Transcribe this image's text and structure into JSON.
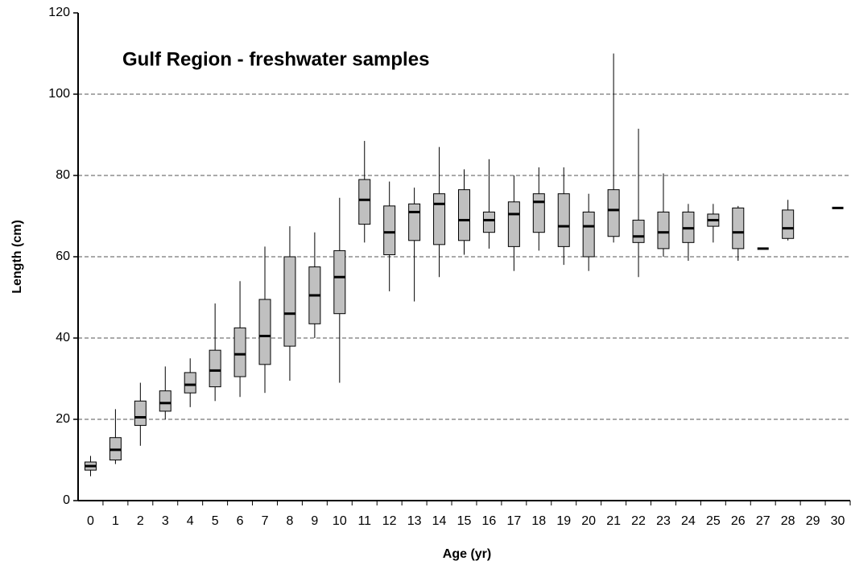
{
  "chart_data": {
    "type": "box",
    "title": "Gulf Region - freshwater samples",
    "x_label": "Age (yr)",
    "y_label": "Length (cm)",
    "categories": [
      "0",
      "1",
      "2",
      "3",
      "4",
      "5",
      "6",
      "7",
      "8",
      "9",
      "10",
      "11",
      "12",
      "13",
      "14",
      "15",
      "16",
      "17",
      "18",
      "19",
      "20",
      "21",
      "22",
      "23",
      "24",
      "25",
      "26",
      "27",
      "28",
      "29",
      "30"
    ],
    "boxes": [
      {
        "min": 6,
        "q1": 7.5,
        "median": 8.5,
        "q3": 9.5,
        "max": 11
      },
      {
        "min": 9,
        "q1": 10,
        "median": 12.5,
        "q3": 15.5,
        "max": 22.5
      },
      {
        "min": 13.5,
        "q1": 18.5,
        "median": 20.5,
        "q3": 24.5,
        "max": 29
      },
      {
        "min": 20,
        "q1": 22,
        "median": 24,
        "q3": 27,
        "max": 33
      },
      {
        "min": 23,
        "q1": 26.5,
        "median": 28.5,
        "q3": 31.5,
        "max": 35
      },
      {
        "min": 24.5,
        "q1": 28,
        "median": 32,
        "q3": 37,
        "max": 48.5
      },
      {
        "min": 25.5,
        "q1": 30.5,
        "median": 36,
        "q3": 42.5,
        "max": 54
      },
      {
        "min": 26.5,
        "q1": 33.5,
        "median": 40.5,
        "q3": 49.5,
        "max": 62.5
      },
      {
        "min": 29.5,
        "q1": 38,
        "median": 46,
        "q3": 60,
        "max": 67.5
      },
      {
        "min": 40,
        "q1": 43.5,
        "median": 50.5,
        "q3": 57.5,
        "max": 66
      },
      {
        "min": 29,
        "q1": 46,
        "median": 55,
        "q3": 61.5,
        "max": 74.5
      },
      {
        "min": 63.5,
        "q1": 68,
        "median": 74,
        "q3": 79,
        "max": 88.5
      },
      {
        "min": 51.5,
        "q1": 60.5,
        "median": 66,
        "q3": 72.5,
        "max": 78.5
      },
      {
        "min": 49,
        "q1": 64,
        "median": 71,
        "q3": 73,
        "max": 77
      },
      {
        "min": 55,
        "q1": 63,
        "median": 73,
        "q3": 75.5,
        "max": 87
      },
      {
        "min": 60.5,
        "q1": 64,
        "median": 69,
        "q3": 76.5,
        "max": 81.5
      },
      {
        "min": 62,
        "q1": 66,
        "median": 69,
        "q3": 71,
        "max": 84
      },
      {
        "min": 56.5,
        "q1": 62.5,
        "median": 70.5,
        "q3": 73.5,
        "max": 80
      },
      {
        "min": 61.5,
        "q1": 66,
        "median": 73.5,
        "q3": 75.5,
        "max": 82
      },
      {
        "min": 58,
        "q1": 62.5,
        "median": 67.5,
        "q3": 75.5,
        "max": 82
      },
      {
        "min": 56.5,
        "q1": 60,
        "median": 67.5,
        "q3": 71,
        "max": 75.5
      },
      {
        "min": 63.5,
        "q1": 65,
        "median": 71.5,
        "q3": 76.5,
        "max": 110
      },
      {
        "min": 55,
        "q1": 63.5,
        "median": 65,
        "q3": 69,
        "max": 91.5
      },
      {
        "min": 60,
        "q1": 62,
        "median": 66,
        "q3": 71,
        "max": 80.5
      },
      {
        "min": 59,
        "q1": 63.5,
        "median": 67,
        "q3": 71,
        "max": 73
      },
      {
        "min": 63.5,
        "q1": 67.5,
        "median": 69,
        "q3": 70.5,
        "max": 73
      },
      {
        "min": 59,
        "q1": 62,
        "median": 66,
        "q3": 72,
        "max": 72.5
      },
      {
        "median": 62
      },
      {
        "min": 64,
        "q1": 64.5,
        "median": 67,
        "q3": 71.5,
        "max": 74
      },
      null,
      {
        "median": 72
      }
    ],
    "box_color": "#c0c0c0",
    "ylim": [
      0,
      120
    ],
    "yticks": [
      0,
      20,
      40,
      60,
      80,
      100,
      120
    ],
    "grid": true
  }
}
